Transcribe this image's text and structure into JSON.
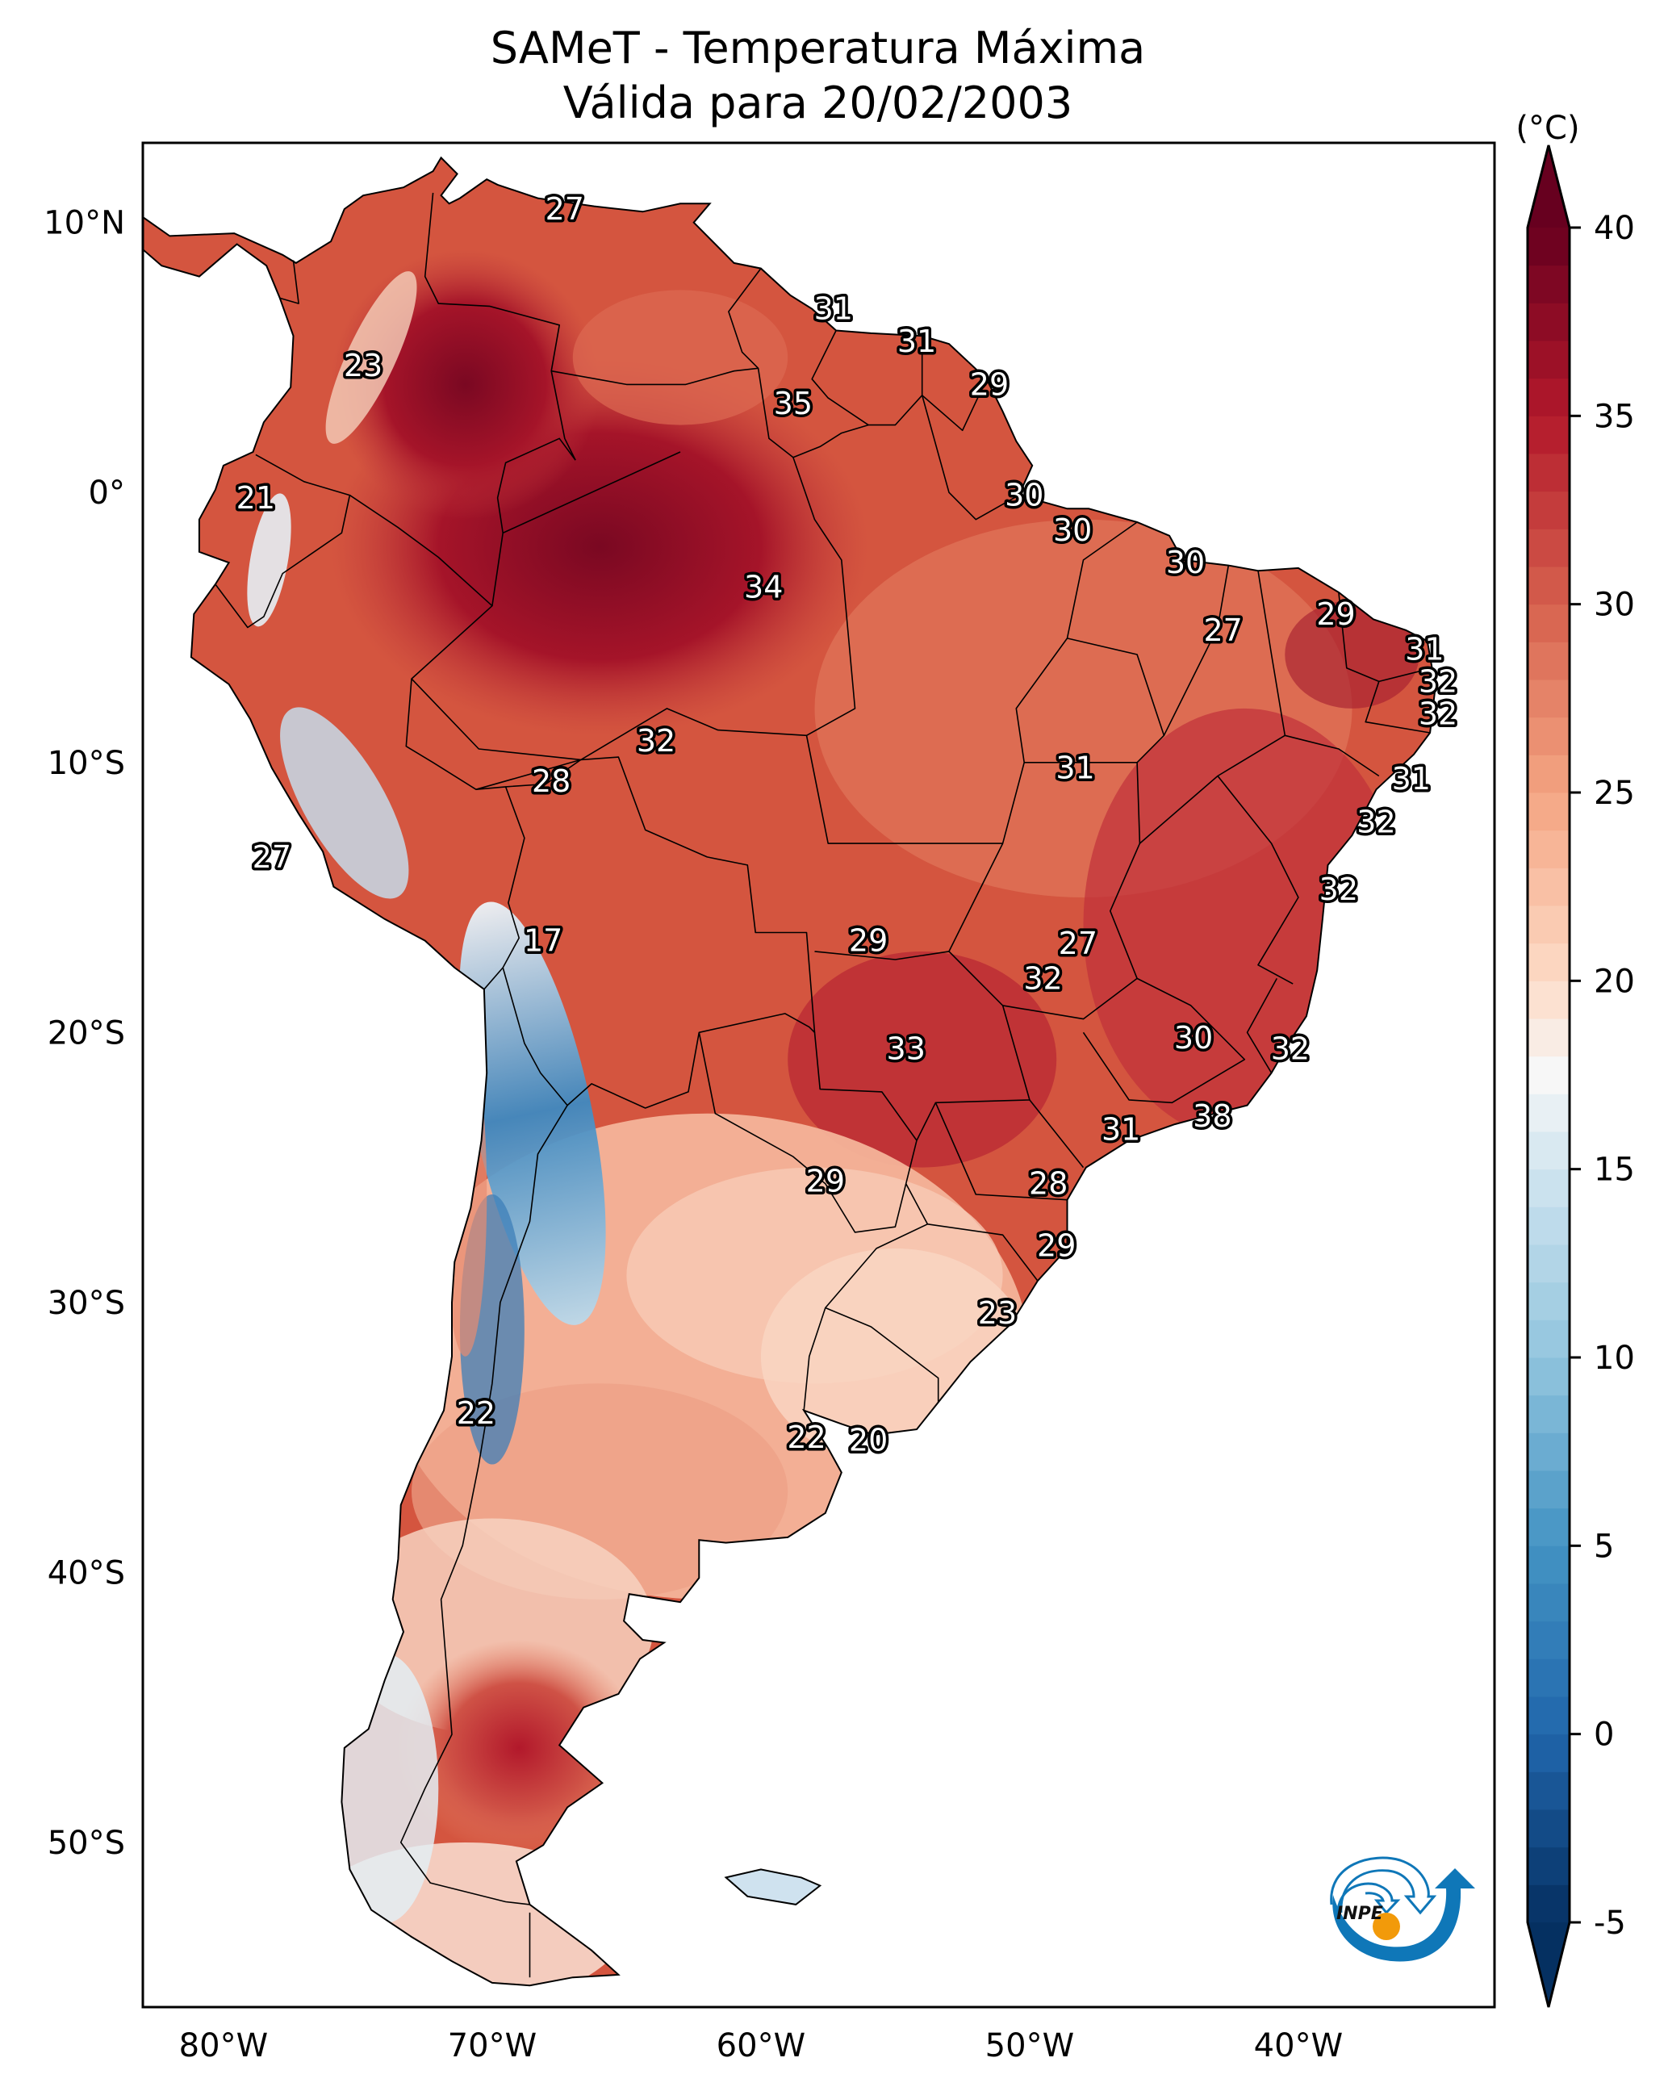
{
  "title": {
    "line1": "SAMeT - Temperatura Máxima",
    "line2": "Válida para 20/02/2003"
  },
  "map": {
    "projection": "plate-carree",
    "extent": {
      "lon_min": -83,
      "lon_max": -32.7,
      "lat_min": -56.1,
      "lat_max": 12.95
    },
    "lat_ticks": [
      {
        "value": 10,
        "label": "10°N"
      },
      {
        "value": 0,
        "label": "0°"
      },
      {
        "value": -10,
        "label": "10°S"
      },
      {
        "value": -20,
        "label": "20°S"
      },
      {
        "value": -30,
        "label": "30°S"
      },
      {
        "value": -40,
        "label": "40°S"
      },
      {
        "value": -50,
        "label": "50°S"
      }
    ],
    "lon_ticks": [
      {
        "value": -80,
        "label": "80°W"
      },
      {
        "value": -70,
        "label": "70°W"
      },
      {
        "value": -60,
        "label": "60°W"
      },
      {
        "value": -50,
        "label": "50°W"
      },
      {
        "value": -40,
        "label": "40°W"
      }
    ],
    "capital_labels": [
      {
        "lon": -67.3,
        "lat": 10.5,
        "value": "27"
      },
      {
        "lon": -74.8,
        "lat": 4.7,
        "value": "23"
      },
      {
        "lon": -78.8,
        "lat": -0.2,
        "value": "21"
      },
      {
        "lon": -58.8,
        "lat": 3.3,
        "value": "35"
      },
      {
        "lon": -57.3,
        "lat": 6.8,
        "value": "31"
      },
      {
        "lon": -54.2,
        "lat": 5.6,
        "value": "31"
      },
      {
        "lon": -51.5,
        "lat": 4.0,
        "value": "29"
      },
      {
        "lon": -50.2,
        "lat": -0.1,
        "value": "30"
      },
      {
        "lon": -48.4,
        "lat": -1.4,
        "value": "30"
      },
      {
        "lon": -44.2,
        "lat": -2.6,
        "value": "30"
      },
      {
        "lon": -38.6,
        "lat": -4.5,
        "value": "29"
      },
      {
        "lon": -42.8,
        "lat": -5.1,
        "value": "27"
      },
      {
        "lon": -35.3,
        "lat": -5.8,
        "value": "31"
      },
      {
        "lon": -34.8,
        "lat": -7.0,
        "value": "32"
      },
      {
        "lon": -34.8,
        "lat": -8.2,
        "value": "32"
      },
      {
        "lon": -35.8,
        "lat": -10.6,
        "value": "31"
      },
      {
        "lon": -37.1,
        "lat": -12.2,
        "value": "32"
      },
      {
        "lon": -38.5,
        "lat": -14.7,
        "value": "32"
      },
      {
        "lon": -59.9,
        "lat": -3.5,
        "value": "34"
      },
      {
        "lon": -63.9,
        "lat": -9.2,
        "value": "32"
      },
      {
        "lon": -67.8,
        "lat": -10.7,
        "value": "28"
      },
      {
        "lon": -78.2,
        "lat": -13.5,
        "value": "27"
      },
      {
        "lon": -48.3,
        "lat": -10.2,
        "value": "31"
      },
      {
        "lon": -56.0,
        "lat": -16.6,
        "value": "29"
      },
      {
        "lon": -48.2,
        "lat": -16.7,
        "value": "27"
      },
      {
        "lon": -49.5,
        "lat": -18.0,
        "value": "32"
      },
      {
        "lon": -68.1,
        "lat": -16.6,
        "value": "17"
      },
      {
        "lon": -54.6,
        "lat": -20.6,
        "value": "33"
      },
      {
        "lon": -43.9,
        "lat": -20.2,
        "value": "30"
      },
      {
        "lon": -40.3,
        "lat": -20.6,
        "value": "32"
      },
      {
        "lon": -43.2,
        "lat": -23.1,
        "value": "38"
      },
      {
        "lon": -46.6,
        "lat": -23.6,
        "value": "31"
      },
      {
        "lon": -49.3,
        "lat": -25.6,
        "value": "28"
      },
      {
        "lon": -57.6,
        "lat": -25.5,
        "value": "29"
      },
      {
        "lon": -49.0,
        "lat": -27.9,
        "value": "29"
      },
      {
        "lon": -51.2,
        "lat": -30.4,
        "value": "23"
      },
      {
        "lon": -70.6,
        "lat": -34.1,
        "value": "22"
      },
      {
        "lon": -58.3,
        "lat": -35.0,
        "value": "22"
      },
      {
        "lon": -56.0,
        "lat": -35.1,
        "value": "20"
      }
    ]
  },
  "colorbar": {
    "unit_label": "(°C)",
    "colormap": "RdBu_r",
    "vmin": -5,
    "vmax": 40,
    "extend": "both",
    "ticks": [
      40,
      35,
      30,
      25,
      20,
      15,
      10,
      5,
      0,
      -5
    ],
    "stops": [
      {
        "v": -5,
        "c": "#053061"
      },
      {
        "v": 0,
        "c": "#2166ac"
      },
      {
        "v": 5,
        "c": "#4393c3"
      },
      {
        "v": 10,
        "c": "#92c5de"
      },
      {
        "v": 15,
        "c": "#d1e5f0"
      },
      {
        "v": 17.5,
        "c": "#f7f7f7"
      },
      {
        "v": 20,
        "c": "#fddbc7"
      },
      {
        "v": 25,
        "c": "#f4a582"
      },
      {
        "v": 30,
        "c": "#d6604d"
      },
      {
        "v": 35,
        "c": "#b2182b"
      },
      {
        "v": 40,
        "c": "#67001f"
      }
    ]
  },
  "logo": {
    "text": "INPE",
    "blue": "#0f77b8",
    "orange": "#f29a0a"
  }
}
